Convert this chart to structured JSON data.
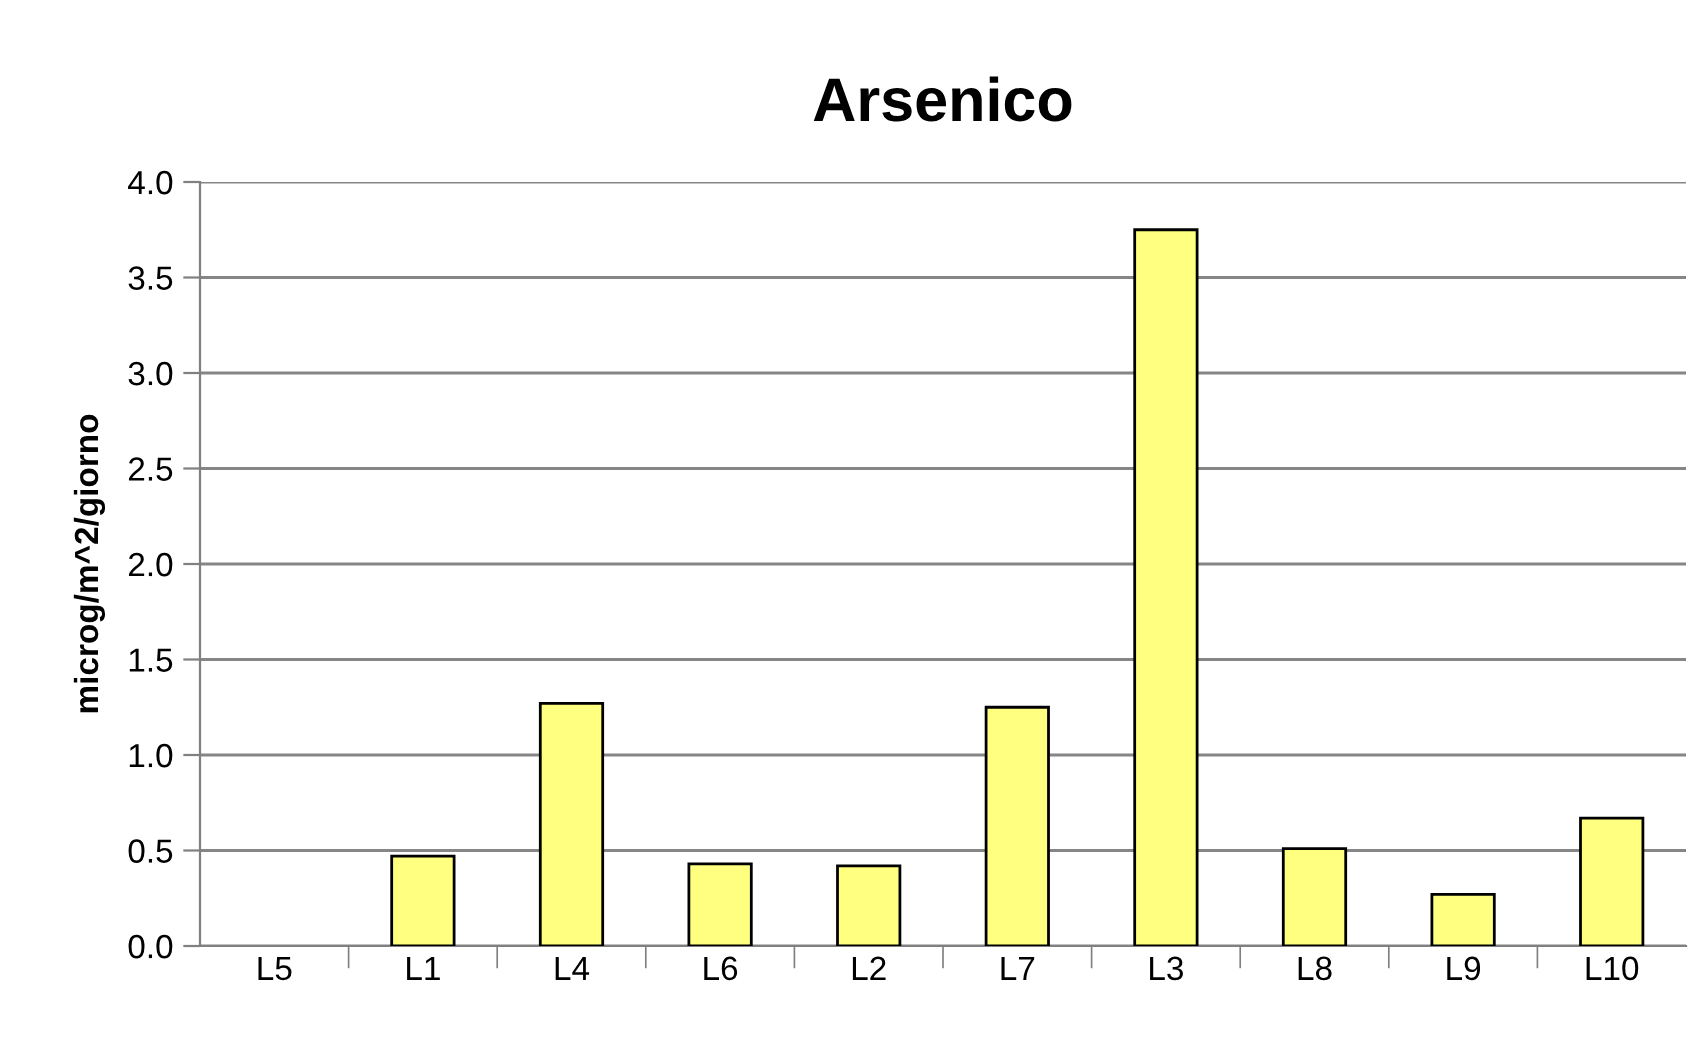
{
  "chart_data": {
    "type": "bar",
    "title": "Arsenico",
    "ylabel": "microg/m^2/giorno",
    "categories": [
      "L5",
      "L1",
      "L4",
      "L6",
      "L2",
      "L7",
      "L3",
      "L8",
      "L9",
      "L10"
    ],
    "values": [
      null,
      0.47,
      1.27,
      0.43,
      0.42,
      1.25,
      3.75,
      0.51,
      0.27,
      0.67
    ],
    "color": "#ffff80",
    "ylim": [
      0,
      4.0
    ],
    "yticks": [
      {
        "value": 0,
        "label": "0.0"
      },
      {
        "value": 0.5,
        "label": "0.5"
      },
      {
        "value": 1.0,
        "label": "1.0"
      },
      {
        "value": 1.5,
        "label": "1.5"
      },
      {
        "value": 2.0,
        "label": "2.0"
      },
      {
        "value": 2.5,
        "label": "2.5"
      },
      {
        "value": 3.0,
        "label": "3.0"
      },
      {
        "value": 3.5,
        "label": "3.5"
      },
      {
        "value": 4.0,
        "label": "4.0"
      }
    ],
    "grid": "y"
  }
}
